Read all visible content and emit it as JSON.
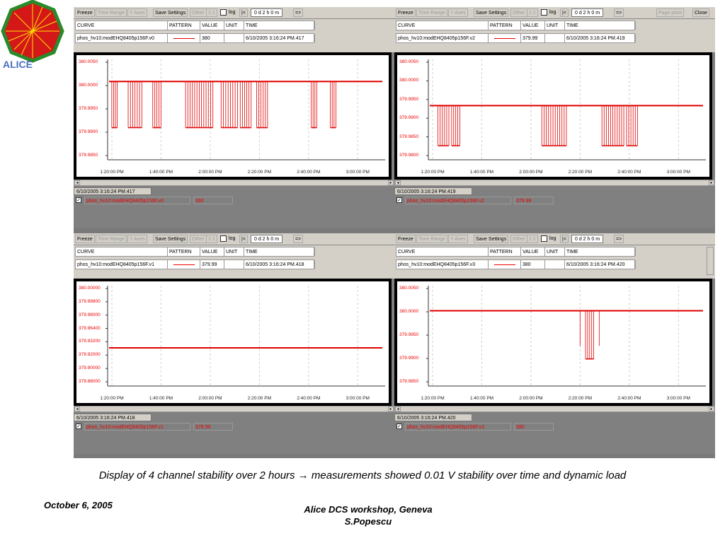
{
  "toolbar": {
    "freeze": "Freeze",
    "time_range": "Time Range",
    "y_axes": "Y Axes",
    "save_settings": "Save Settings",
    "other": "Other",
    "one_to_one": "1:1",
    "log": "log",
    "first": "|<",
    "timespan": "0 d  2 h  0 m",
    "next": "=>",
    "page_plots": "Page plots",
    "close": "Close"
  },
  "table_headers": {
    "curve": "CURVE",
    "pattern": "PATTERN",
    "value": "VALUE",
    "unit": "UNIT",
    "time": "TIME"
  },
  "x_ticks": [
    "1:20:00 PM",
    "1:40:00 PM",
    "2:00:00 PM",
    "2:20:00 PM",
    "2:40:00 PM",
    "3:00:00 PM"
  ],
  "panels": [
    {
      "curve": "phos_hv10:modEHQ8405p156F.v0",
      "value": "380",
      "unit": "",
      "time": "6/10/2005 3:16:24 PM.417",
      "status": "6/10/2005 3:16:24 PM.417",
      "legend_name": "phos_hv10:modEHQ8405p156F.v0",
      "legend_value": "380",
      "y_ticks": [
        "380.0050",
        "380.0000",
        "379.9950",
        "379.9900",
        "379.9850"
      ],
      "x_ticks": [
        "1:20:00 PM",
        "1:40:00 PM",
        "2:00:00 PM",
        "2:20:00 PM",
        "2:40:00 PM",
        "3:00:00 PM"
      ]
    },
    {
      "curve": "phos_hv10:modEHQ8405p156F.v2",
      "value": "379.99",
      "unit": "",
      "time": "6/10/2005 3:16:24 PM.419",
      "status": "6/10/2005 3:16:24 PM.419",
      "legend_name": "phos_hv10:modEHQ8405p156F.v2",
      "legend_value": "379.99",
      "y_ticks": [
        "380.0050",
        "380.0000",
        "379.9950",
        "379.9900",
        "379.9850",
        "379.9800"
      ],
      "x_ticks": [
        "1:20:00 PM",
        "1:40:00 PM",
        "2:00:00 PM",
        "2:20:00 PM",
        "2:40:00 PM",
        "3:00:00 PM"
      ]
    },
    {
      "curve": "phos_hv10:modEHQ8405p156F.v1",
      "value": "379.99",
      "unit": "",
      "time": "6/10/2005 3:16:24 PM.418",
      "status": "6/10/2005 3:16:24 PM.418",
      "legend_name": "phos_hv10:modEHQ8405p156F.v1",
      "legend_value": "379.99",
      "y_ticks": [
        "380.00000",
        "379.99800",
        "379.98000",
        "379.96400",
        "379.93200",
        "379.92000",
        "379.90000",
        "379.88000"
      ],
      "x_ticks": [
        "1:20:00 PM",
        "1:40:00 PM",
        "2:00:00 PM",
        "2:20:00 PM",
        "2:40:00 PM",
        "3:00:00 PM"
      ]
    },
    {
      "curve": "phos_hv10:modEHQ8405p156F.v3",
      "value": "380",
      "unit": "",
      "time": "6/10/2005 3:16:24 PM.420",
      "status": "6/10/2005 3:16:24 PM.420",
      "legend_name": "phos_hv10:modEHQ8405p156F.v3",
      "legend_value": "380",
      "y_ticks": [
        "380.0050",
        "380.0000",
        "379.9950",
        "379.9900",
        "379.9850"
      ],
      "x_ticks": [
        "1:20:00 PM",
        "1:40:00 PM",
        "2:00:00 PM",
        "2:20:00 PM",
        "2:40:00 PM",
        "3:00:00 PM"
      ]
    }
  ],
  "caption": "Display of 4 channel stability over 2 hours → measurements showed 0.01 V stability over time and dynamic load",
  "footer_date": "October 6, 2005",
  "footer_event": "Alice DCS workshop, Geneva",
  "footer_author": "S.Popescu",
  "logo_text": "ALICE",
  "colors": {
    "trace": "#e00000",
    "window_bg": "#d4d0c8",
    "screen_bg": "#808080"
  }
}
